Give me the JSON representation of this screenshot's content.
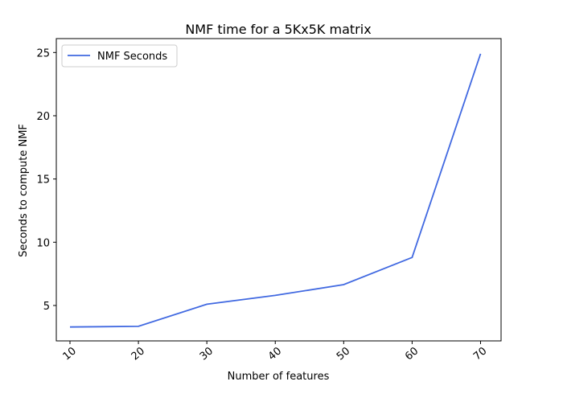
{
  "chart_data": {
    "type": "line",
    "title": "NMF time for a 5Kx5K matrix",
    "xlabel": "Number of features",
    "ylabel": "Seconds to compute NMF",
    "x": [
      10,
      20,
      30,
      40,
      50,
      60,
      70
    ],
    "x_ticks": [
      "10",
      "20",
      "30",
      "40",
      "50",
      "60",
      "70"
    ],
    "y_ticks": [
      "5",
      "10",
      "15",
      "20",
      "25"
    ],
    "y_tick_values": [
      5,
      10,
      15,
      20,
      25
    ],
    "xlim": [
      8.0,
      73.0
    ],
    "ylim": [
      2.2,
      26.1
    ],
    "series": [
      {
        "name": "NMF Seconds",
        "color": "#4169e1",
        "values": [
          3.3,
          3.35,
          5.1,
          5.8,
          6.65,
          8.8,
          24.9
        ]
      }
    ],
    "legend_position": "upper-left",
    "grid": false
  }
}
